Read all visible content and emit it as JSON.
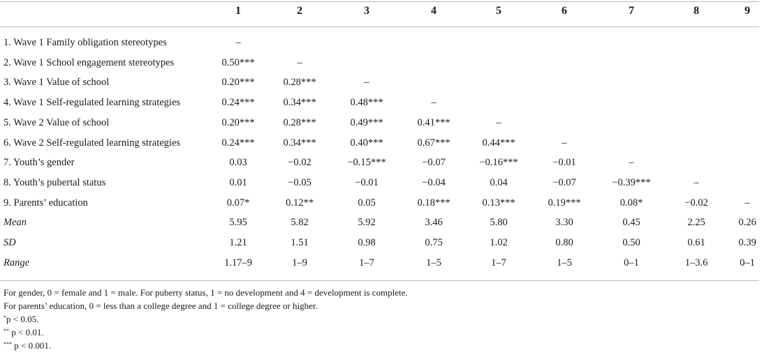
{
  "columns": [
    "1",
    "2",
    "3",
    "4",
    "5",
    "6",
    "7",
    "8",
    "9"
  ],
  "rows": [
    {
      "label": "1. Wave 1 Family obligation stereotypes",
      "italic": false,
      "cells": [
        "–",
        "",
        "",
        "",
        "",
        "",
        "",
        "",
        ""
      ]
    },
    {
      "label": "2. Wave 1 School engagement stereotypes",
      "italic": false,
      "cells": [
        "0.50***",
        "–",
        "",
        "",
        "",
        "",
        "",
        "",
        ""
      ]
    },
    {
      "label": "3. Wave 1 Value of school",
      "italic": false,
      "cells": [
        "0.20***",
        "0.28***",
        "–",
        "",
        "",
        "",
        "",
        "",
        ""
      ]
    },
    {
      "label": "4. Wave 1 Self-regulated learning strategies",
      "italic": false,
      "cells": [
        "0.24***",
        "0.34***",
        "0.48***",
        "–",
        "",
        "",
        "",
        "",
        ""
      ]
    },
    {
      "label": "5. Wave 2 Value of school",
      "italic": false,
      "cells": [
        "0.20***",
        "0.28***",
        "0.49***",
        "0.41***",
        "–",
        "",
        "",
        "",
        ""
      ]
    },
    {
      "label": "6. Wave 2 Self-regulated learning strategies",
      "italic": false,
      "cells": [
        "0.24***",
        "0.34***",
        "0.40***",
        "0.67***",
        "0.44***",
        "–",
        "",
        "",
        ""
      ]
    },
    {
      "label": "7. Youth’s gender",
      "italic": false,
      "cells": [
        "0.03",
        "−0.02",
        "−0.15***",
        "−0.07",
        "−0.16***",
        "−0.01",
        "–",
        "",
        ""
      ]
    },
    {
      "label": "8. Youth’s pubertal status",
      "italic": false,
      "cells": [
        "0.01",
        "−0.05",
        "−0.01",
        "−0.04",
        "0.04",
        "−0.07",
        "−0.39***",
        "–",
        ""
      ]
    },
    {
      "label": "9. Parents’ education",
      "italic": false,
      "cells": [
        "0.07*",
        "0.12**",
        "0.05",
        "0.18***",
        "0.13***",
        "0.19***",
        "0.08*",
        "−0.02",
        "–"
      ]
    },
    {
      "label": "Mean",
      "italic": true,
      "cells": [
        "5.95",
        "5.82",
        "5.92",
        "3.46",
        "5.80",
        "3.30",
        "0.45",
        "2.25",
        "0.26"
      ]
    },
    {
      "label": "SD",
      "italic": true,
      "cells": [
        "1.21",
        "1.51",
        "0.98",
        "0.75",
        "1.02",
        "0.80",
        "0.50",
        "0.61",
        "0.39"
      ]
    },
    {
      "label": "Range",
      "italic": true,
      "cells": [
        "1.17–9",
        "1–9",
        "1–7",
        "1–5",
        "1–7",
        "1–5",
        "0–1",
        "1–3.6",
        "0–1"
      ]
    }
  ],
  "notes": [
    {
      "sup": "",
      "text": "For gender, 0 = female and 1 = male. For puberty status, 1 = no development and 4 = development is complete."
    },
    {
      "sup": "",
      "text": "For parents’ education, 0 = less than a college degree and 1 = college degree or higher."
    },
    {
      "sup": "*",
      "text": "p < 0.05."
    },
    {
      "sup": "**",
      "text": " p < 0.01."
    },
    {
      "sup": "***",
      "text": " p < 0.001."
    }
  ]
}
